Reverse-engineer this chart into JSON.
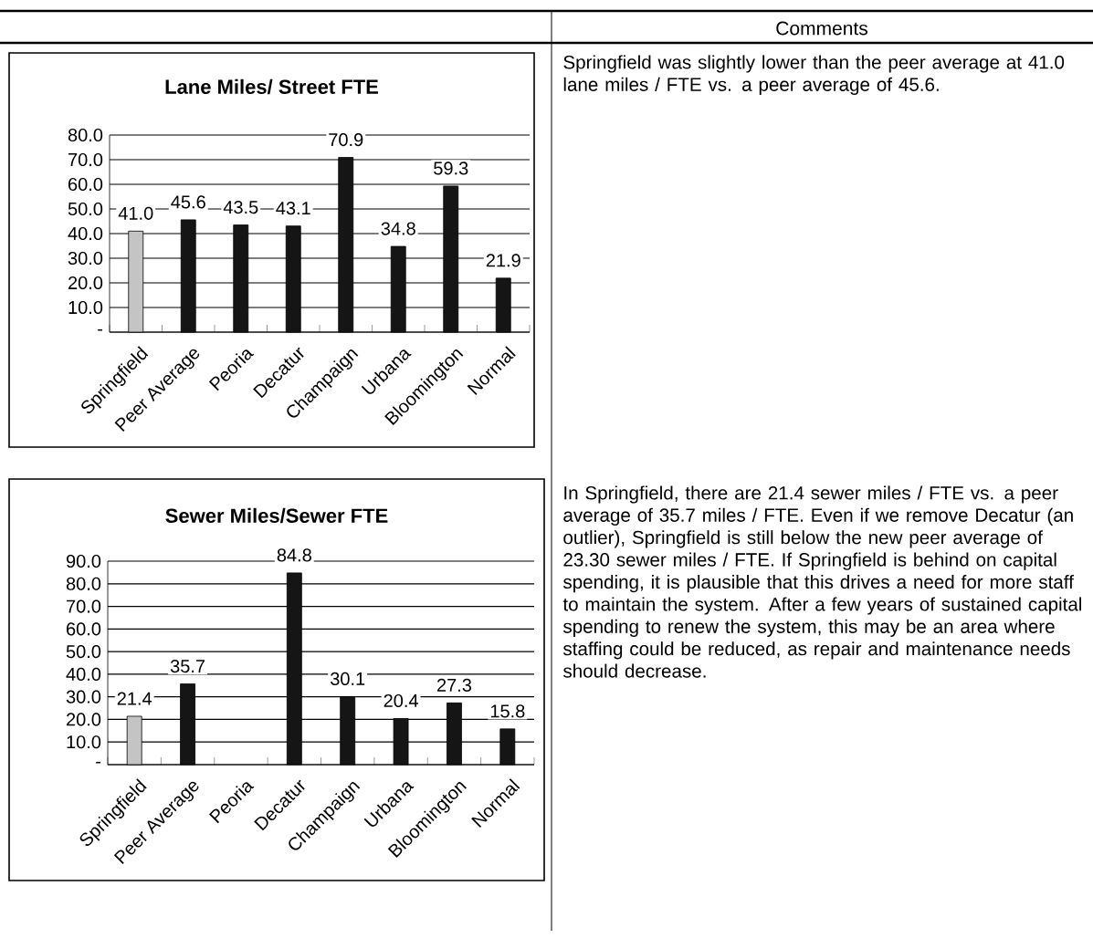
{
  "chart_data": [
    {
      "type": "bar",
      "title": "Lane Miles/ Street FTE",
      "categories": [
        "Springfield",
        "Peer Average",
        "Peoria",
        "Decatur",
        "Champaign",
        "Urbana",
        "Bloomington",
        "Normal"
      ],
      "values": [
        41.0,
        45.6,
        43.5,
        43.1,
        70.9,
        34.8,
        59.3,
        21.9
      ],
      "value_labels": [
        "41.0",
        "45.6",
        "43.5",
        "43.1",
        "70.9",
        "34.8",
        "59.3",
        "21.9"
      ],
      "colors": [
        "#c4c4c4",
        "#151515",
        "#151515",
        "#151515",
        "#151515",
        "#151515",
        "#151515",
        "#151515"
      ],
      "ylim": [
        0,
        80
      ],
      "yticks": [
        {
          "value": 0,
          "label": "-"
        },
        {
          "value": 10,
          "label": "10.0"
        },
        {
          "value": 20,
          "label": "20.0"
        },
        {
          "value": 30,
          "label": "30.0"
        },
        {
          "value": 40,
          "label": "40.0"
        },
        {
          "value": 50,
          "label": "50.0"
        },
        {
          "value": 60,
          "label": "60.0"
        },
        {
          "value": 70,
          "label": "70.0"
        },
        {
          "value": 80,
          "label": "80.0"
        }
      ],
      "grid": "y"
    },
    {
      "type": "bar",
      "title": "Sewer Miles/Sewer FTE",
      "categories": [
        "Springfield",
        "Peer Average",
        "Peoria",
        "Decatur",
        "Champaign",
        "Urbana",
        "Bloomington",
        "Normal"
      ],
      "values": [
        21.4,
        35.7,
        null,
        84.8,
        30.1,
        20.4,
        27.3,
        15.8
      ],
      "value_labels": [
        "21.4",
        "35.7",
        null,
        "84.8",
        "30.1",
        "20.4",
        "27.3",
        "15.8"
      ],
      "colors": [
        "#c4c4c4",
        "#151515",
        "#151515",
        "#151515",
        "#151515",
        "#151515",
        "#151515",
        "#151515"
      ],
      "ylim": [
        0,
        90
      ],
      "yticks": [
        {
          "value": 0,
          "label": "-"
        },
        {
          "value": 10,
          "label": "10.0"
        },
        {
          "value": 20,
          "label": "20.0"
        },
        {
          "value": 30,
          "label": "30.0"
        },
        {
          "value": 40,
          "label": "40.0"
        },
        {
          "value": 50,
          "label": "50.0"
        },
        {
          "value": 60,
          "label": "60.0"
        },
        {
          "value": 70,
          "label": "70.0"
        },
        {
          "value": 80,
          "label": "80.0"
        },
        {
          "value": 90,
          "label": "90.0"
        }
      ],
      "grid": "y"
    },
    {
      "type": "other",
      "title": "Comments",
      "annotations": [
        "Springfield was slightly lower than the peer average at 41.0 lane miles / FTE vs. a peer average of 45.6.",
        "In Springfield, there are 21.4 sewer miles / FTE vs. a peer average of 35.7 miles / FTE. Even if we remove Decatur (an outlier), Springfield is still below the new peer average of 23.30 sewer miles / FTE. If Springfield is behind on capital spending, it is plausible that this drives a need for more staff to maintain the system.  After a few years of sustained capital spending to renew the system, this may be an area where staffing could be reduced, as repair and maintenance needs should decrease."
      ]
    }
  ]
}
